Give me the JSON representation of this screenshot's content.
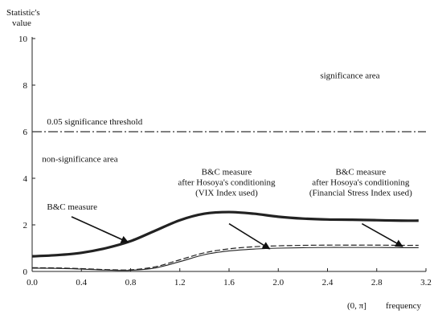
{
  "chart_data": {
    "type": "line",
    "ylabel": "Statistic's\nvalue",
    "xlabel": "frequency",
    "xlabel_prefix": "(0, π]",
    "xlim": [
      0,
      3.2
    ],
    "ylim": [
      0,
      10
    ],
    "x_ticks": [
      "0.0",
      "0.4",
      "0.8",
      "1.2",
      "1.6",
      "2.0",
      "2.4",
      "2.8",
      "3.2"
    ],
    "y_ticks": [
      "0",
      "2",
      "4",
      "6",
      "8",
      "10"
    ],
    "threshold": {
      "value": 6,
      "label": "0.05 significance threshold"
    },
    "region_labels": {
      "upper": "significance area",
      "lower": "non-significance area"
    },
    "grid": false,
    "series": [
      {
        "name": "B&C measure",
        "style": "thick-solid",
        "x": [
          0,
          0.2,
          0.4,
          0.6,
          0.8,
          1.0,
          1.2,
          1.4,
          1.6,
          1.8,
          2.0,
          2.2,
          2.4,
          2.6,
          2.8,
          3.0,
          3.14
        ],
        "y": [
          0.65,
          0.7,
          0.8,
          1.0,
          1.3,
          1.75,
          2.2,
          2.48,
          2.55,
          2.48,
          2.35,
          2.27,
          2.23,
          2.22,
          2.2,
          2.18,
          2.18
        ]
      },
      {
        "name": "B&C measure after Hosoya's conditioning (VIX Index used)",
        "style": "dashed",
        "x": [
          0,
          0.2,
          0.4,
          0.6,
          0.8,
          1.0,
          1.2,
          1.4,
          1.6,
          1.8,
          2.0,
          2.2,
          2.4,
          2.6,
          2.8,
          3.0,
          3.14
        ],
        "y": [
          0.16,
          0.15,
          0.12,
          0.08,
          0.07,
          0.2,
          0.5,
          0.8,
          0.97,
          1.06,
          1.1,
          1.12,
          1.13,
          1.13,
          1.13,
          1.12,
          1.12
        ]
      },
      {
        "name": "B&C measure after Hosoya's conditioning (Financial Stress Index used)",
        "style": "thin-solid",
        "x": [
          0,
          0.2,
          0.4,
          0.6,
          0.8,
          1.0,
          1.2,
          1.4,
          1.6,
          1.8,
          2.0,
          2.2,
          2.4,
          2.6,
          2.8,
          3.0,
          3.14
        ],
        "y": [
          0.14,
          0.13,
          0.1,
          0.06,
          0.05,
          0.15,
          0.42,
          0.72,
          0.88,
          0.96,
          1.0,
          1.02,
          1.03,
          1.03,
          1.03,
          1.02,
          1.02
        ]
      }
    ],
    "annotations": [
      {
        "lines": [
          "B&C measure"
        ],
        "points_to": "B&C measure",
        "arrow_from": [
          0.32,
          2.35
        ],
        "arrow_to": [
          0.78,
          1.25
        ]
      },
      {
        "lines": [
          "B&C measure",
          "after Hosoya's conditioning",
          "(VIX Index used)"
        ],
        "points_to": "VIX",
        "arrow_from": [
          1.6,
          2.05
        ],
        "arrow_to": [
          1.93,
          0.97
        ]
      },
      {
        "lines": [
          "B&C measure",
          "after Hosoya's conditioning",
          "(Financial Stress Index used)"
        ],
        "points_to": "FSI",
        "arrow_from": [
          2.68,
          2.05
        ],
        "arrow_to": [
          3.01,
          1.07
        ]
      }
    ]
  }
}
